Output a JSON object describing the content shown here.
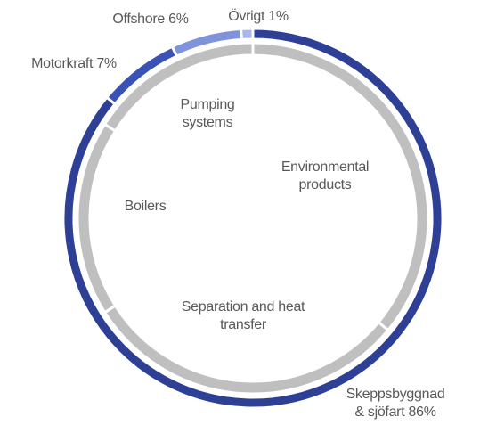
{
  "chart_data": [
    {
      "type": "donut",
      "categories": [
        "Skeppsbyggnad & sjöfart",
        "Motorkraft",
        "Offshore",
        "Övrigt"
      ],
      "values": [
        86,
        7,
        6,
        1
      ],
      "value_labels": [
        "86%",
        "7%",
        "6%",
        "1%"
      ],
      "colors": [
        "#2e3f96",
        "#3a52b5",
        "#7f93dd",
        "#a9b6e8"
      ]
    },
    {
      "type": "donut",
      "categories": [
        "Environmental products",
        "Separation and heat transfer",
        "Boilers",
        "Pumping systems"
      ],
      "values": [
        36,
        30,
        18,
        16
      ],
      "colors": [
        "#bfbfbf",
        "#bfbfbf",
        "#bfbfbf",
        "#bfbfbf"
      ]
    }
  ]
}
